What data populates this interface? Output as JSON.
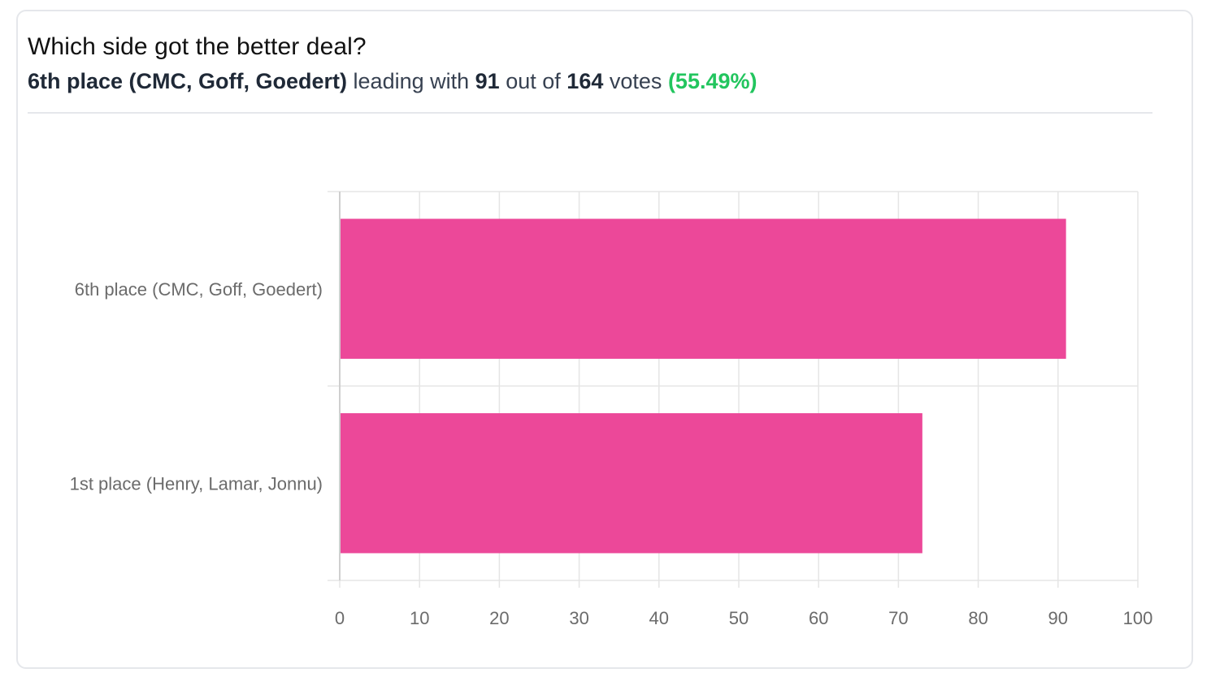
{
  "poll": {
    "question": "Which side got the better deal?",
    "leader_name": "6th place (CMC, Goff, Goedert)",
    "leading_with_text": "leading with",
    "leader_votes": "91",
    "out_of_text": "out of",
    "total_votes": "164",
    "votes_text": "votes",
    "leader_percent": "(55.49%)"
  },
  "colors": {
    "bar": "#ec4899",
    "percent": "#22c55e",
    "grid": "#e5e5e5",
    "tick_text": "#6b6b6b"
  },
  "chart_data": {
    "type": "bar",
    "orientation": "horizontal",
    "title": "",
    "xlabel": "",
    "ylabel": "",
    "categories": [
      "6th place (CMC, Goff, Goedert)",
      "1st place (Henry, Lamar, Jonnu)"
    ],
    "values": [
      91,
      73
    ],
    "xlim": [
      0,
      100
    ],
    "x_ticks": [
      0,
      10,
      20,
      30,
      40,
      50,
      60,
      70,
      80,
      90,
      100
    ],
    "grid": true,
    "legend": "none"
  }
}
